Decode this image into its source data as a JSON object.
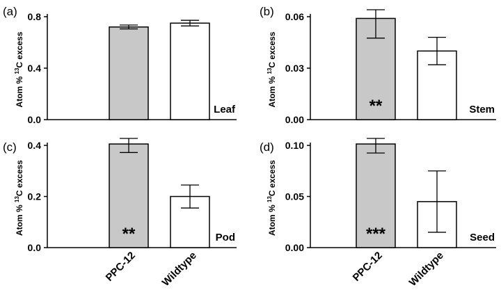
{
  "chart_data": [
    {
      "type": "bar",
      "panel_label": "(a)",
      "organ_label": "Leaf",
      "ylabel": {
        "prefix": "Atom % ",
        "sup": "13",
        "suffix": "C excess"
      },
      "categories": [
        "PPC-12",
        "Wildtype"
      ],
      "values": [
        0.72,
        0.75
      ],
      "errors": [
        0.015,
        0.022
      ],
      "bar_colors": [
        "#c8c8c8",
        "#ffffff"
      ],
      "significance": [
        "",
        ""
      ],
      "ylim": [
        0,
        0.8
      ],
      "yticks": [
        "0.0",
        "0.4",
        "0.8"
      ],
      "ytick_values": [
        0,
        0.4,
        0.8
      ],
      "grid": false
    },
    {
      "type": "bar",
      "panel_label": "(b)",
      "organ_label": "Stem",
      "ylabel": {
        "prefix": "Atom % ",
        "sup": "13",
        "suffix": "C excess"
      },
      "categories": [
        "PPC-12",
        "Wildtype"
      ],
      "values": [
        0.059,
        0.04
      ],
      "errors": [
        0.0115,
        0.008
      ],
      "bar_colors": [
        "#c8c8c8",
        "#ffffff"
      ],
      "significance": [
        "**",
        ""
      ],
      "ylim": [
        0,
        0.06
      ],
      "yticks": [
        "0.00",
        "0.03",
        "0.06"
      ],
      "ytick_values": [
        0,
        0.03,
        0.06
      ],
      "grid": false
    },
    {
      "type": "bar",
      "panel_label": "(c)",
      "organ_label": "Pod",
      "ylabel": {
        "prefix": "Atom % ",
        "sup": "13",
        "suffix": "C excess"
      },
      "categories": [
        "PPC-12",
        "Wildtype"
      ],
      "values": [
        0.42,
        0.2
      ],
      "errors": [
        0.048,
        0.045
      ],
      "bar_colors": [
        "#c8c8c8",
        "#ffffff"
      ],
      "significance": [
        "**",
        ""
      ],
      "ylim": [
        0,
        0.4
      ],
      "yticks": [
        "0.0",
        "0.2",
        "0.4"
      ],
      "ytick_values": [
        0,
        0.2,
        0.4
      ],
      "grid": false
    },
    {
      "type": "bar",
      "panel_label": "(d)",
      "organ_label": "Seed",
      "ylabel": {
        "prefix": "Atom % ",
        "sup": "13",
        "suffix": "C excess"
      },
      "categories": [
        "PPC-12",
        "Wildtype"
      ],
      "values": [
        0.108,
        0.045
      ],
      "errors": [
        0.0155,
        0.03
      ],
      "bar_colors": [
        "#c8c8c8",
        "#ffffff"
      ],
      "significance": [
        "***",
        ""
      ],
      "ylim": [
        0,
        0.1
      ],
      "yticks": [
        "0.00",
        "0.05",
        "0.10"
      ],
      "ytick_values": [
        0,
        0.05,
        0.1
      ],
      "grid": false
    }
  ],
  "x_category_labels": [
    "PPC-12",
    "Wildtype"
  ]
}
